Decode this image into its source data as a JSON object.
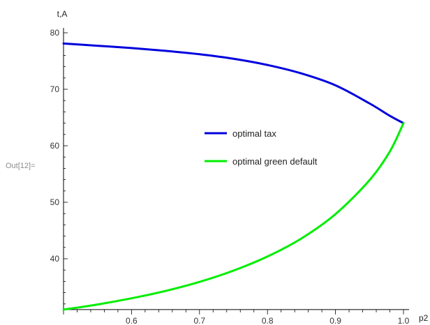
{
  "cell_label": "Out[12]=",
  "chart_data": {
    "type": "line",
    "xlabel": "p2",
    "ylabel": "t,A",
    "xlim": [
      0.5,
      1.0
    ],
    "ylim": [
      31,
      80
    ],
    "x_ticks": [
      0.6,
      0.7,
      0.8,
      0.9,
      1.0
    ],
    "x_tick_labels": [
      "0.6",
      "0.7",
      "0.8",
      "0.9",
      "1.0"
    ],
    "y_ticks": [
      40,
      50,
      60,
      70,
      80
    ],
    "y_tick_labels": [
      "40",
      "50",
      "60",
      "70",
      "80"
    ],
    "legend_position": "center-right",
    "grid": false,
    "series": [
      {
        "name": "optimal tax",
        "color": "#0000dd",
        "x": [
          0.5,
          0.55,
          0.6,
          0.65,
          0.7,
          0.75,
          0.8,
          0.85,
          0.9,
          0.95,
          0.98,
          1.0
        ],
        "y": [
          78.1,
          77.7,
          77.3,
          76.8,
          76.2,
          75.4,
          74.3,
          72.8,
          70.7,
          67.5,
          65.3,
          64.0
        ]
      },
      {
        "name": "optimal green default",
        "color": "#00ee00",
        "x": [
          0.5,
          0.55,
          0.6,
          0.65,
          0.7,
          0.75,
          0.8,
          0.85,
          0.9,
          0.95,
          0.98,
          1.0
        ],
        "y": [
          31.0,
          31.9,
          33.0,
          34.3,
          35.9,
          37.9,
          40.4,
          43.6,
          47.9,
          53.9,
          59.0,
          64.0
        ]
      }
    ]
  }
}
